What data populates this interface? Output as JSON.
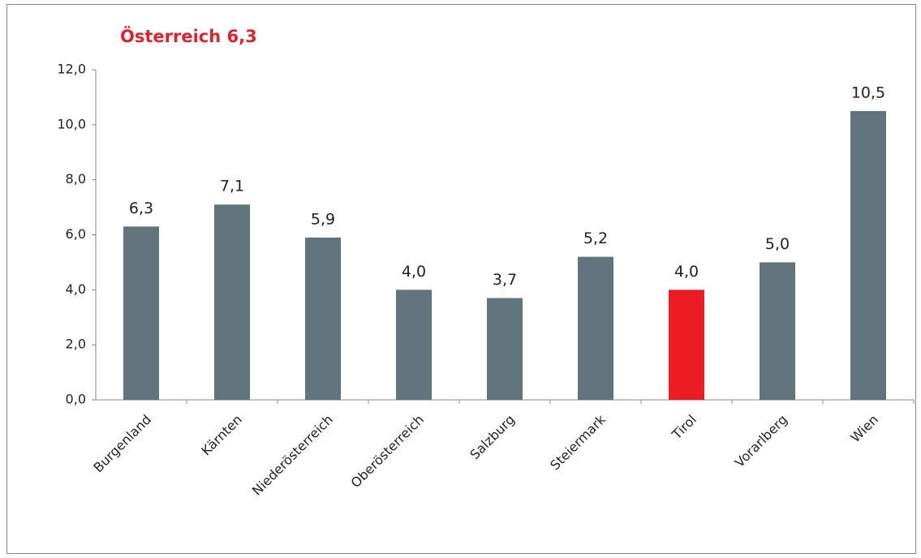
{
  "chart_data": {
    "type": "bar",
    "title": "Österreich 6,3",
    "categories": [
      "Burgenland",
      "Kärnten",
      "Niederösterreich",
      "Oberösterreich",
      "Salzburg",
      "Steiermark",
      "Tirol",
      "Vorarlberg",
      "Wien"
    ],
    "values": [
      6.3,
      7.1,
      5.9,
      4.0,
      3.7,
      5.2,
      4.0,
      5.0,
      10.5
    ],
    "value_labels": [
      "6,3",
      "7,1",
      "5,9",
      "4,0",
      "3,7",
      "5,2",
      "4,0",
      "5,0",
      "10,5"
    ],
    "colors": [
      "#5f747b",
      "#5f747b",
      "#5f747b",
      "#5f747b",
      "#5f747b",
      "#5f747b",
      "#ed1c24",
      "#5f747b",
      "#5f747b"
    ],
    "title_color": "#e3202b",
    "ylim": [
      0,
      12
    ],
    "yticks": [
      {
        "value": 0,
        "label": "0,0"
      },
      {
        "value": 2,
        "label": "2,0"
      },
      {
        "value": 4,
        "label": "4,0"
      },
      {
        "value": 6,
        "label": "6,0"
      },
      {
        "value": 8,
        "label": "8,0"
      },
      {
        "value": 10,
        "label": "10,0"
      },
      {
        "value": 12,
        "label": "12,0"
      }
    ],
    "grid": false
  }
}
